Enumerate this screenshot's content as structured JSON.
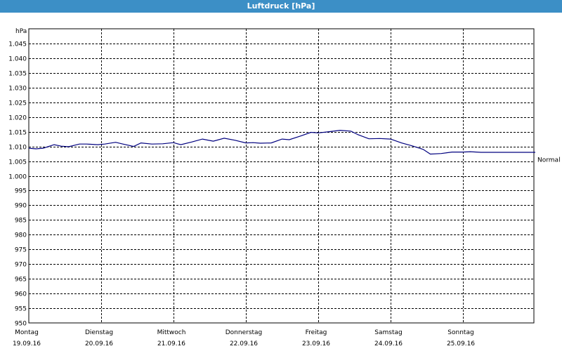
{
  "window": {
    "title": "Luftdruck [hPa]"
  },
  "colors": {
    "titlebar": "#3c8fc6",
    "line": "#00007f",
    "grid": "#000000"
  },
  "chart_data": {
    "type": "line",
    "ylabel": "hPa",
    "ylim": [
      950,
      1050
    ],
    "yticks": [
      "950",
      "955",
      "960",
      "965",
      "970",
      "975",
      "980",
      "985",
      "990",
      "995",
      "1.000",
      "1.005",
      "1.010",
      "1.015",
      "1.020",
      "1.025",
      "1.030",
      "1.035",
      "1.040",
      "1.045"
    ],
    "ytick_values": [
      950,
      955,
      960,
      965,
      970,
      975,
      980,
      985,
      990,
      995,
      1000,
      1005,
      1010,
      1015,
      1020,
      1025,
      1030,
      1035,
      1040,
      1045
    ],
    "xlim": [
      0,
      7
    ],
    "xticks": [
      {
        "day": "Montag",
        "date": "19.09.16"
      },
      {
        "day": "Dienstag",
        "date": "20.09.16"
      },
      {
        "day": "Mittwoch",
        "date": "21.09.16"
      },
      {
        "day": "Donnerstag",
        "date": "22.09.16"
      },
      {
        "day": "Freitag",
        "date": "23.09.16"
      },
      {
        "day": "Samstag",
        "date": "24.09.16"
      },
      {
        "day": "Sonntag",
        "date": "25.09.16"
      }
    ],
    "grid": true,
    "reference_line": {
      "label": "Normal",
      "value": 1005.5
    },
    "series": [
      {
        "x": [
          0,
          0.1,
          0.2,
          0.35,
          0.45,
          0.55,
          0.7,
          0.8,
          0.95,
          1.05,
          1.2,
          1.3,
          1.45,
          1.55,
          1.7,
          1.85,
          2.0,
          2.1,
          2.25,
          2.4,
          2.55,
          2.7,
          2.85,
          3.0,
          3.1,
          3.2,
          3.35,
          3.5,
          3.6,
          3.75,
          3.9,
          4.0,
          4.15,
          4.3,
          4.45,
          4.55,
          4.7,
          4.85,
          5.0,
          5.15,
          5.3,
          5.45,
          5.55,
          5.7,
          5.85,
          6.0,
          6.1,
          6.25,
          6.4,
          6.55,
          6.7,
          6.85,
          7.0
        ],
        "values": [
          1009.4,
          1009.2,
          1009.4,
          1010.6,
          1010.1,
          1009.9,
          1010.8,
          1010.8,
          1010.6,
          1010.8,
          1011.4,
          1010.8,
          1010.0,
          1011.2,
          1010.8,
          1010.9,
          1011.3,
          1010.6,
          1011.5,
          1012.5,
          1011.8,
          1012.8,
          1012.1,
          1011.2,
          1011.3,
          1011.1,
          1011.2,
          1012.5,
          1012.3,
          1013.5,
          1014.8,
          1014.6,
          1015.0,
          1015.5,
          1015.2,
          1014.0,
          1012.6,
          1012.7,
          1012.5,
          1011.2,
          1010.2,
          1009.0,
          1007.4,
          1007.6,
          1008.1,
          1008.1,
          1008.2,
          1008.0,
          1008.0,
          1008.0,
          1008.0,
          1008.0,
          1008.0
        ]
      }
    ]
  }
}
